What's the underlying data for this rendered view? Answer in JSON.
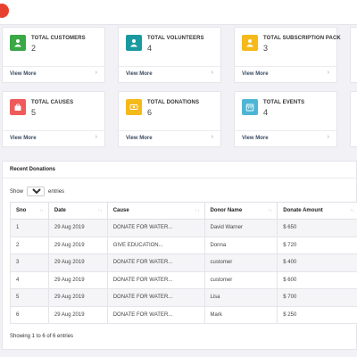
{
  "colors": {
    "logo": "#e8402f",
    "customers": "#3aa845",
    "volunteers": "#1a9aa0",
    "subscriptions": "#f5b91a",
    "causes": "#ef5b5b",
    "donations": "#f5b91a",
    "events": "#4db6d6"
  },
  "cards": [
    {
      "title": "TOTAL CUSTOMERS",
      "value": "2",
      "link": "View More",
      "icon": "user-icon"
    },
    {
      "title": "TOTAL VOLUNTEERS",
      "value": "4",
      "link": "View More",
      "icon": "user-icon"
    },
    {
      "title": "TOTAL SUBSCRIPTION PACK",
      "value": "3",
      "link": "View More",
      "icon": "user-icon"
    },
    {
      "title": "TOTAL CAUSES",
      "value": "5",
      "link": "View More",
      "icon": "shopping-bag-icon"
    },
    {
      "title": "TOTAL DONATIONS",
      "value": "6",
      "link": "View More",
      "icon": "money-icon"
    },
    {
      "title": "TOTAL EVENTS",
      "value": "4",
      "link": "View More",
      "icon": "calendar-icon"
    }
  ],
  "donations": {
    "title": "Recent Donations",
    "show_label": "Show",
    "entries_label": "entries",
    "page_size": "10",
    "columns": [
      "Sno",
      "Date",
      "Cause",
      "Donor Name",
      "Donate Amount"
    ],
    "rows": [
      [
        "1",
        "29 Aug 2019",
        "DONATE FOR WATER...",
        "David Warner",
        "$ 650"
      ],
      [
        "2",
        "29 Aug 2019",
        "GIVE EDUCATION...",
        "Donna",
        "$ 720"
      ],
      [
        "3",
        "29 Aug 2019",
        "DONATE FOR WATER...",
        "customer",
        "$ 400"
      ],
      [
        "4",
        "29 Aug 2019",
        "DONATE FOR WATER...",
        "customer",
        "$ 600"
      ],
      [
        "5",
        "29 Aug 2019",
        "DONATE FOR WATER...",
        "Lisa",
        "$ 700"
      ],
      [
        "6",
        "29 Aug 2019",
        "DONATE FOR WATER...",
        "Mark",
        "$ 250"
      ]
    ],
    "info": "Showing 1 to 6 of 6 entries"
  }
}
